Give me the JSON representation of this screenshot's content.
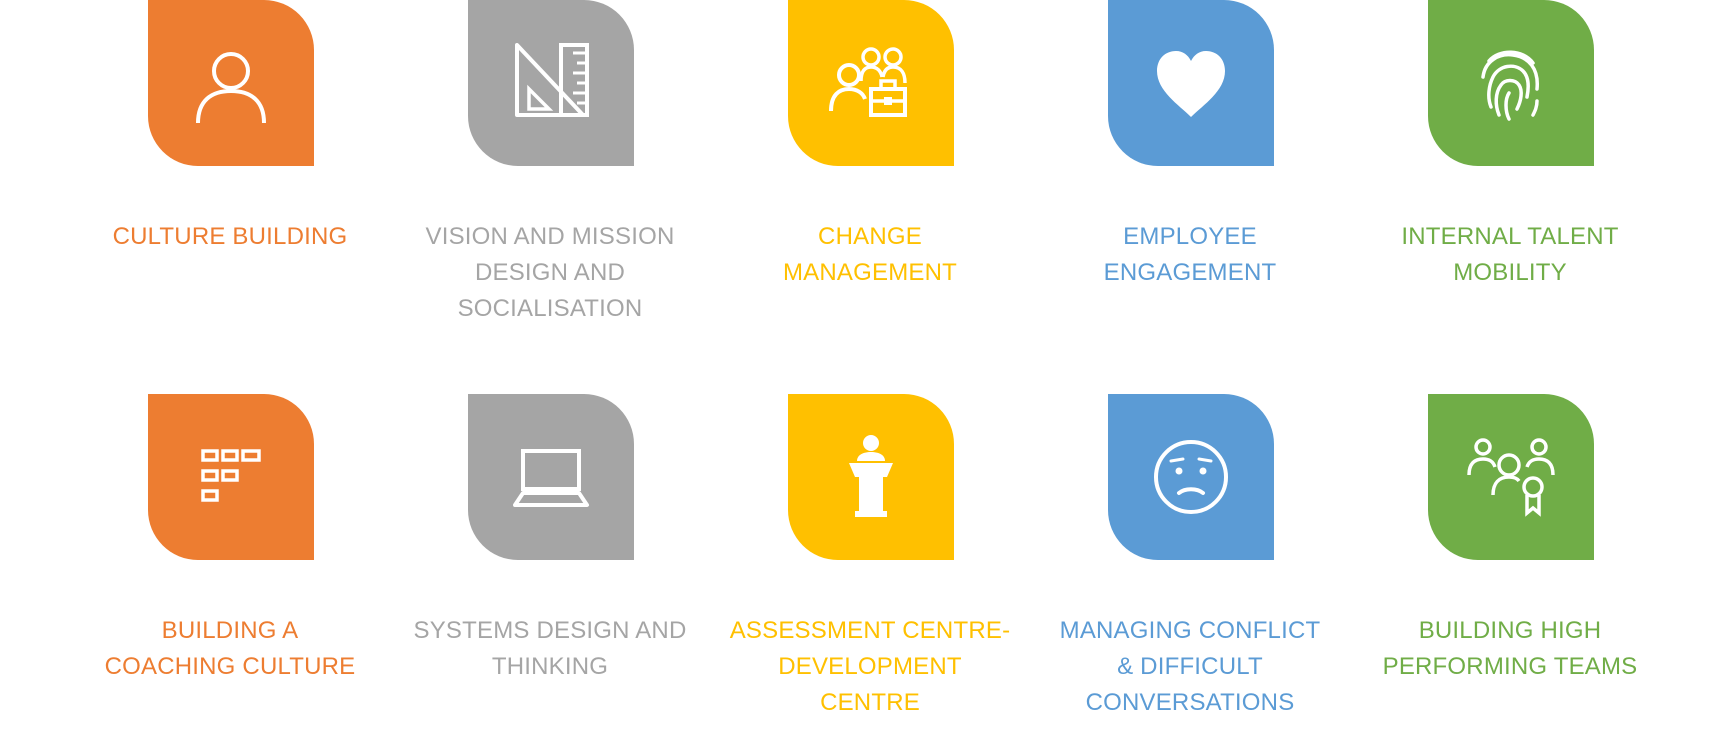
{
  "services": [
    {
      "label": "CULTURE BUILDING",
      "icon": "user-icon",
      "color": "#ed7d31"
    },
    {
      "label": "VISION AND MISSION\nDESIGN AND\nSOCIALISATION",
      "icon": "ruler-triangle-icon",
      "color": "#a5a5a5"
    },
    {
      "label": "CHANGE\nMANAGEMENT",
      "icon": "people-briefcase-icon",
      "color": "#ffc000"
    },
    {
      "label": "EMPLOYEE\nENGAGEMENT",
      "icon": "heart-icon",
      "color": "#5b9bd5"
    },
    {
      "label": "INTERNAL TALENT\nMOBILITY",
      "icon": "fingerprint-icon",
      "color": "#70ad47"
    },
    {
      "label": "BUILDING A\nCOACHING CULTURE",
      "icon": "grid-blocks-icon",
      "color": "#ed7d31"
    },
    {
      "label": "SYSTEMS DESIGN AND\nTHINKING",
      "icon": "laptop-icon",
      "color": "#a5a5a5"
    },
    {
      "label": "ASSESSMENT CENTRE-\nDEVELOPMENT\nCENTRE",
      "icon": "podium-speaker-icon",
      "color": "#ffc000"
    },
    {
      "label": "MANAGING CONFLICT\n& DIFFICULT\nCONVERSATIONS",
      "icon": "worried-face-icon",
      "color": "#5b9bd5"
    },
    {
      "label": "BUILDING HIGH\nPERFORMING TEAMS",
      "icon": "team-award-icon",
      "color": "#70ad47"
    }
  ]
}
